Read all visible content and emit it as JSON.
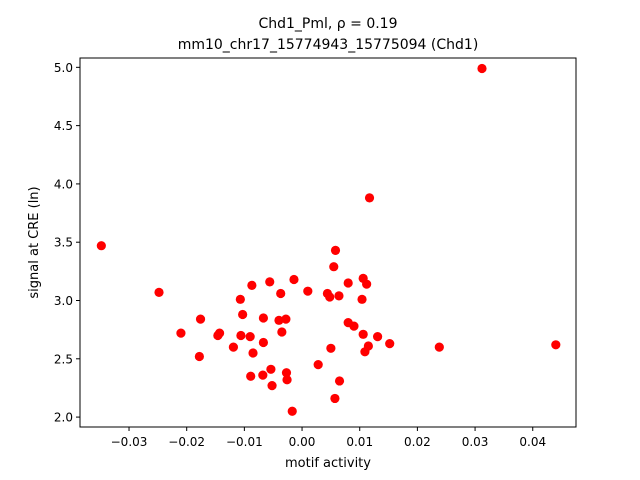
{
  "chart_data": {
    "type": "scatter",
    "title_line1": "Chd1_Pml, ρ = 0.19",
    "title_line2": "mm10_chr17_15774943_15775094 (Chd1)",
    "xlabel": "motif activity",
    "ylabel": "signal at CRE (ln)",
    "xlim": [
      -0.0385,
      0.0475
    ],
    "ylim": [
      1.915,
      5.08
    ],
    "x_ticks": [
      -0.03,
      -0.02,
      -0.01,
      0.0,
      0.01,
      0.02,
      0.03,
      0.04
    ],
    "x_tick_labels": [
      "−0.03",
      "−0.02",
      "−0.01",
      "0.00",
      "0.01",
      "0.02",
      "0.03",
      "0.04"
    ],
    "y_ticks": [
      2.0,
      2.5,
      3.0,
      3.5,
      4.0,
      4.5,
      5.0
    ],
    "y_tick_labels": [
      "2.0",
      "2.5",
      "3.0",
      "3.5",
      "4.0",
      "4.5",
      "5.0"
    ],
    "marker_color": "#ff0000",
    "points": [
      [
        -0.0348,
        3.47
      ],
      [
        -0.0248,
        3.07
      ],
      [
        -0.021,
        2.72
      ],
      [
        -0.0178,
        2.52
      ],
      [
        -0.0176,
        2.84
      ],
      [
        -0.0146,
        2.7
      ],
      [
        -0.0143,
        2.72
      ],
      [
        -0.0119,
        2.6
      ],
      [
        -0.0107,
        3.01
      ],
      [
        -0.0106,
        2.7
      ],
      [
        -0.0103,
        2.88
      ],
      [
        -0.009,
        2.69
      ],
      [
        -0.0089,
        2.35
      ],
      [
        -0.0087,
        3.13
      ],
      [
        -0.0085,
        2.55
      ],
      [
        -0.0068,
        2.36
      ],
      [
        -0.0067,
        2.64
      ],
      [
        -0.0067,
        2.85
      ],
      [
        -0.0056,
        3.16
      ],
      [
        -0.0054,
        2.41
      ],
      [
        -0.0052,
        2.27
      ],
      [
        -0.004,
        2.83
      ],
      [
        -0.0037,
        3.06
      ],
      [
        -0.0035,
        2.73
      ],
      [
        -0.0028,
        2.84
      ],
      [
        -0.0027,
        2.38
      ],
      [
        -0.0026,
        2.32
      ],
      [
        -0.0017,
        2.05
      ],
      [
        -0.0014,
        3.18
      ],
      [
        0.001,
        3.08
      ],
      [
        0.0028,
        2.45
      ],
      [
        0.0044,
        3.06
      ],
      [
        0.0048,
        3.03
      ],
      [
        0.005,
        2.59
      ],
      [
        0.0055,
        3.29
      ],
      [
        0.0057,
        2.16
      ],
      [
        0.0058,
        3.43
      ],
      [
        0.0064,
        3.04
      ],
      [
        0.0065,
        2.31
      ],
      [
        0.008,
        2.81
      ],
      [
        0.008,
        3.15
      ],
      [
        0.009,
        2.78
      ],
      [
        0.0104,
        3.01
      ],
      [
        0.0106,
        3.19
      ],
      [
        0.0106,
        2.71
      ],
      [
        0.0109,
        2.56
      ],
      [
        0.0112,
        3.14
      ],
      [
        0.0115,
        2.61
      ],
      [
        0.0117,
        3.88
      ],
      [
        0.0131,
        2.69
      ],
      [
        0.0152,
        2.63
      ],
      [
        0.0238,
        2.6
      ],
      [
        0.0312,
        4.99
      ],
      [
        0.044,
        2.62
      ]
    ]
  }
}
